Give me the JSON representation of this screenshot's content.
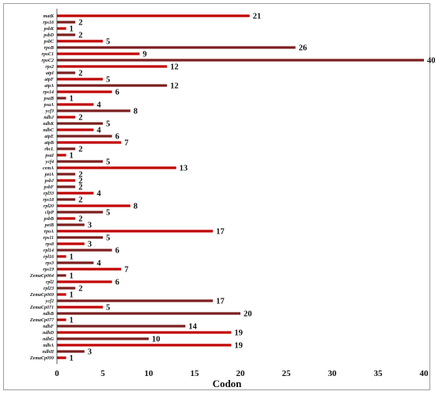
{
  "chart_data": {
    "type": "bar",
    "orientation": "horizontal",
    "xlabel": "Codon",
    "ylabel": "",
    "xlim": [
      0,
      40
    ],
    "xticks": [
      0,
      5,
      10,
      15,
      20,
      25,
      30,
      35,
      40
    ],
    "grid": false,
    "bar_color": "#c00000",
    "bar_color_alt": "#7b1f1f",
    "value_color_highlight": "#7b2a8b",
    "categories": [
      "matK",
      "rps16",
      "psbK",
      "psbD",
      "psbC",
      "rpoB",
      "rpoC1",
      "rpoC2",
      "rps2",
      "atpI",
      "atpF",
      "atpA",
      "rps14",
      "psaB",
      "psaA",
      "ycf3",
      "ndhJ",
      "ndhK",
      "ndhC",
      "atpE",
      "atpB",
      "rbcL",
      "psaI",
      "ycf4",
      "cemA",
      "petA",
      "psbJ",
      "psbF",
      "rpl33",
      "rps18",
      "rpl20",
      "clpP",
      "psbB",
      "petB",
      "rpoA",
      "rps11",
      "rps8",
      "rpl14",
      "rpl16",
      "rps3",
      "rps19",
      "ZemaCp064",
      "rpl2",
      "rpl23",
      "ZemaCp069",
      "ycf2",
      "ZemaCp071",
      "ndhB",
      "ZemaCp077",
      "ndhF",
      "ndhD",
      "ndhG",
      "ndhA",
      "ndhH",
      "ZemaCp099"
    ],
    "values": [
      21,
      2,
      1,
      2,
      5,
      26,
      9,
      40,
      12,
      2,
      5,
      12,
      6,
      1,
      4,
      8,
      2,
      5,
      4,
      6,
      7,
      2,
      1,
      5,
      13,
      2,
      2,
      2,
      4,
      2,
      8,
      5,
      2,
      3,
      17,
      5,
      3,
      6,
      1,
      4,
      7,
      1,
      6,
      2,
      1,
      17,
      5,
      20,
      1,
      14,
      19,
      10,
      19,
      3,
      1
    ],
    "highlight_value_categories": [
      "rps19"
    ]
  }
}
